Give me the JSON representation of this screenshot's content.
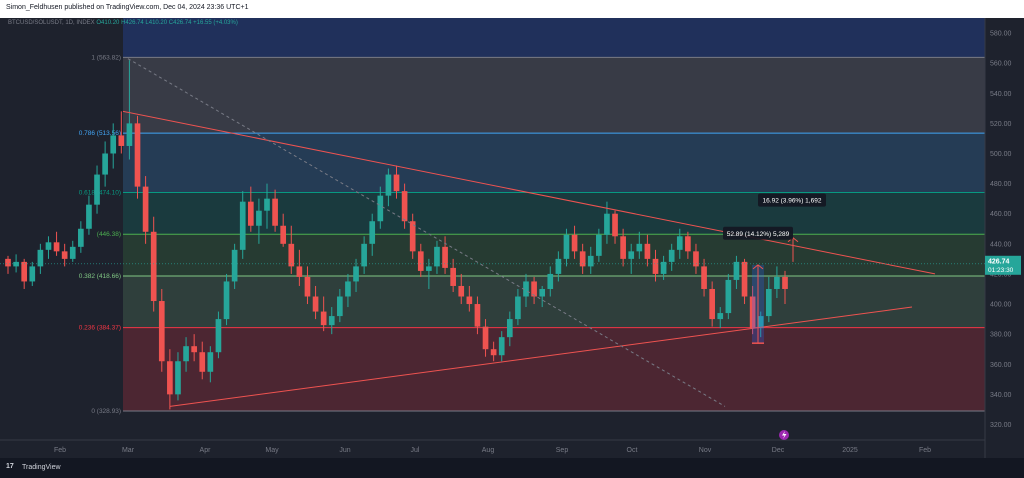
{
  "header": {
    "published": "Simon_Feldhusen published on TradingView.com, Dec 04, 2024 23:36 UTC+1"
  },
  "legend": {
    "symbol": "BTCUSD/SOLUSDT, 1D, INDEX",
    "o": "O410.20",
    "h": "H426.74",
    "l": "L410.20",
    "c": "C426.74",
    "change": "+16.55 (+4.03%)"
  },
  "footer": {
    "brand": "TradingView"
  },
  "chart_data": {
    "type": "candlestick",
    "x_ticks": [
      "Feb",
      "Mar",
      "Apr",
      "May",
      "Jun",
      "Jul",
      "Aug",
      "Sep",
      "Oct",
      "Nov",
      "Dec",
      "2025",
      "Feb"
    ],
    "y_ticks": [
      320,
      340,
      360,
      380,
      400,
      420,
      440,
      460,
      480,
      500,
      520,
      540,
      560,
      580
    ],
    "ylim": [
      315,
      590
    ],
    "last_price": {
      "value": "426.74",
      "countdown": "01:23:30"
    },
    "fibonacci": [
      {
        "level": "1",
        "price": "563.82",
        "label": "1 (563.82)",
        "value": 563.82,
        "color": "#787b86"
      },
      {
        "level": "0.786",
        "price": "513.56",
        "label": "0.786 (513.56)",
        "value": 513.56,
        "color": "#42a5f5"
      },
      {
        "level": "0.618",
        "price": "474.10",
        "label": "0.618 (474.10)",
        "value": 474.1,
        "color": "#089981"
      },
      {
        "level": "0.5",
        "price": "446.38",
        "label": "(446.38)",
        "value": 446.38,
        "color": "#4caf50"
      },
      {
        "level": "0.382",
        "price": "418.66",
        "label": "0.382 (418.66)",
        "value": 418.66,
        "color": "#81c784"
      },
      {
        "level": "0.236",
        "price": "384.37",
        "label": "0.236 (384.37)",
        "value": 384.37,
        "color": "#f23645"
      },
      {
        "level": "0",
        "price": "328.93",
        "label": "0 (328.93)",
        "value": 328.93,
        "color": "#787b86"
      }
    ],
    "measure_labels": [
      {
        "text": "52.89 (14.12%) 5,289"
      },
      {
        "text": "16.92 (3.96%) 1,692"
      }
    ],
    "ohlc": [
      [
        430,
        432,
        420,
        425
      ],
      [
        425,
        433,
        421,
        428
      ],
      [
        428,
        430,
        410,
        415
      ],
      [
        415,
        428,
        412,
        425
      ],
      [
        425,
        440,
        420,
        436
      ],
      [
        436,
        445,
        430,
        441
      ],
      [
        441,
        448,
        432,
        435
      ],
      [
        435,
        440,
        425,
        430
      ],
      [
        430,
        442,
        428,
        438
      ],
      [
        438,
        455,
        434,
        450
      ],
      [
        450,
        472,
        446,
        466
      ],
      [
        466,
        492,
        460,
        486
      ],
      [
        486,
        508,
        478,
        500
      ],
      [
        500,
        520,
        490,
        512
      ],
      [
        512,
        528,
        500,
        505
      ],
      [
        505,
        562,
        496,
        520
      ],
      [
        520,
        525,
        470,
        478
      ],
      [
        478,
        485,
        440,
        448
      ],
      [
        448,
        458,
        395,
        402
      ],
      [
        402,
        410,
        355,
        362
      ],
      [
        362,
        370,
        330,
        340
      ],
      [
        340,
        368,
        336,
        362
      ],
      [
        362,
        378,
        355,
        372
      ],
      [
        372,
        380,
        362,
        368
      ],
      [
        368,
        375,
        350,
        355
      ],
      [
        355,
        372,
        348,
        368
      ],
      [
        368,
        395,
        364,
        390
      ],
      [
        390,
        420,
        386,
        415
      ],
      [
        415,
        440,
        410,
        436
      ],
      [
        436,
        475,
        430,
        468
      ],
      [
        468,
        478,
        448,
        452
      ],
      [
        452,
        470,
        440,
        462
      ],
      [
        462,
        480,
        450,
        470
      ],
      [
        470,
        476,
        448,
        452
      ],
      [
        452,
        460,
        438,
        440
      ],
      [
        440,
        452,
        420,
        425
      ],
      [
        425,
        436,
        412,
        418
      ],
      [
        418,
        425,
        400,
        405
      ],
      [
        405,
        412,
        390,
        395
      ],
      [
        395,
        405,
        382,
        386
      ],
      [
        386,
        398,
        380,
        392
      ],
      [
        392,
        410,
        388,
        405
      ],
      [
        405,
        420,
        398,
        415
      ],
      [
        415,
        430,
        408,
        425
      ],
      [
        425,
        445,
        420,
        440
      ],
      [
        440,
        460,
        432,
        455
      ],
      [
        455,
        478,
        450,
        472
      ],
      [
        472,
        490,
        465,
        486
      ],
      [
        486,
        492,
        470,
        475
      ],
      [
        475,
        480,
        450,
        455
      ],
      [
        455,
        460,
        430,
        435
      ],
      [
        435,
        440,
        418,
        422
      ],
      [
        422,
        430,
        410,
        425
      ],
      [
        425,
        442,
        420,
        438
      ],
      [
        438,
        445,
        420,
        424
      ],
      [
        424,
        430,
        408,
        412
      ],
      [
        412,
        420,
        400,
        405
      ],
      [
        405,
        412,
        395,
        400
      ],
      [
        400,
        405,
        380,
        385
      ],
      [
        385,
        390,
        365,
        370
      ],
      [
        370,
        375,
        362,
        366
      ],
      [
        366,
        382,
        362,
        378
      ],
      [
        378,
        395,
        372,
        390
      ],
      [
        390,
        410,
        386,
        405
      ],
      [
        405,
        420,
        398,
        415
      ],
      [
        415,
        418,
        400,
        405
      ],
      [
        405,
        412,
        398,
        410
      ],
      [
        410,
        425,
        405,
        420
      ],
      [
        420,
        435,
        415,
        430
      ],
      [
        430,
        450,
        425,
        446
      ],
      [
        446,
        452,
        430,
        435
      ],
      [
        435,
        440,
        420,
        425
      ],
      [
        425,
        438,
        420,
        432
      ],
      [
        432,
        450,
        428,
        446
      ],
      [
        446,
        468,
        440,
        460
      ],
      [
        460,
        462,
        440,
        445
      ],
      [
        445,
        450,
        425,
        430
      ],
      [
        430,
        440,
        420,
        435
      ],
      [
        435,
        448,
        430,
        440
      ],
      [
        440,
        446,
        425,
        430
      ],
      [
        430,
        436,
        415,
        420
      ],
      [
        420,
        432,
        416,
        428
      ],
      [
        428,
        440,
        422,
        436
      ],
      [
        436,
        450,
        430,
        445
      ],
      [
        445,
        448,
        430,
        435
      ],
      [
        435,
        440,
        420,
        425
      ],
      [
        425,
        430,
        405,
        410
      ],
      [
        410,
        415,
        385,
        390
      ],
      [
        390,
        398,
        384,
        394
      ],
      [
        394,
        420,
        390,
        416
      ],
      [
        416,
        432,
        410,
        428
      ],
      [
        428,
        430,
        400,
        405
      ],
      [
        405,
        412,
        380,
        384
      ],
      [
        384,
        395,
        378,
        392
      ],
      [
        392,
        418,
        388,
        410
      ],
      [
        410,
        425,
        404,
        418
      ],
      [
        418,
        422,
        400,
        410
      ]
    ]
  }
}
